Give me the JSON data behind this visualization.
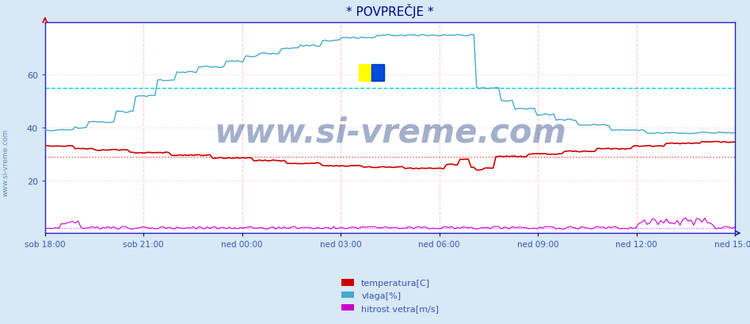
{
  "title": "* POVPREČJE *",
  "bg_color": "#d8e8f5",
  "plot_bg_color": "#ffffff",
  "title_color": "#00008b",
  "axis_color": "#2222bb",
  "tick_color": "#3355bb",
  "legend_labels": [
    "temperatura[C]",
    "vlaga[%]",
    "hitrost vetra[m/s]"
  ],
  "legend_colors": [
    "#cc0000",
    "#44aacc",
    "#cc00cc"
  ],
  "line_colors": [
    "#cc0000",
    "#44aacc",
    "#cc00cc"
  ],
  "ref_line_temp": 29,
  "ref_line_vlaga": 55,
  "ref_line_wind": 2,
  "ref_color_temp": "#ff4444",
  "ref_color_vlaga": "#00ccdd",
  "ref_color_wind": "#ee44ee",
  "grid_v_color": "#ffcccc",
  "grid_h_color": "#ffcccc",
  "ylim": [
    0,
    80
  ],
  "yticks": [
    20,
    40,
    60
  ],
  "x_tick_labels": [
    "sob 18:00",
    "sob 21:00",
    "ned 00:00",
    "ned 03:00",
    "ned 06:00",
    "ned 09:00",
    "ned 12:00",
    "ned 15:00"
  ],
  "watermark": "www.si-vreme.com",
  "watermark_color": "#1a3a80",
  "n_points": 252
}
